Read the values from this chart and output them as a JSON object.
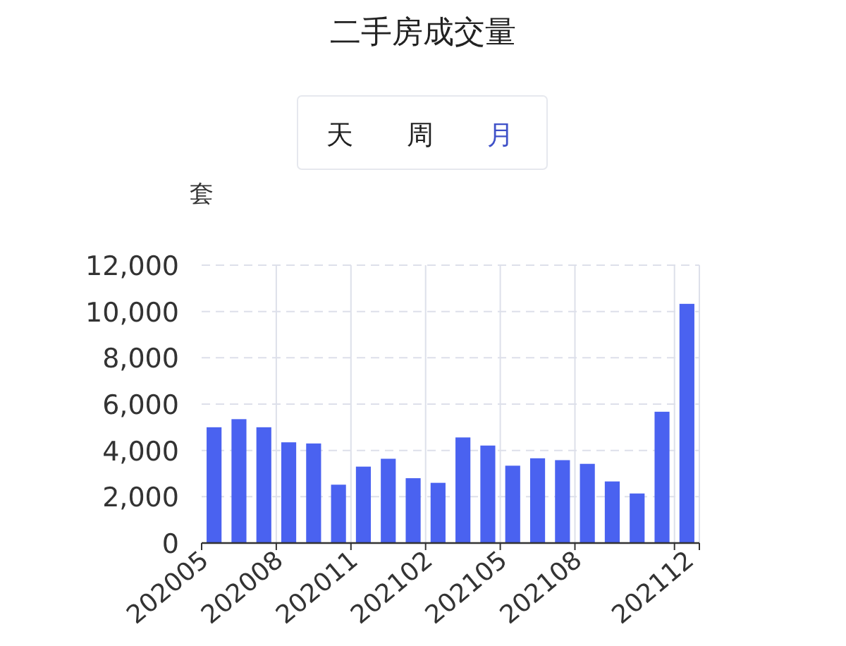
{
  "chart_data": {
    "type": "bar",
    "title": "二手房成交量",
    "ylabel": "套",
    "annotations": [
      "天",
      "周",
      "月"
    ],
    "categories": [
      "202005",
      null,
      null,
      "202008",
      null,
      null,
      "202011",
      null,
      null,
      "202102",
      null,
      null,
      "202105",
      null,
      null,
      "202108",
      null,
      null,
      null,
      "202112"
    ],
    "series": [
      {
        "color": "#4a62f0",
        "values": [
          5000,
          5350,
          5000,
          4350,
          4300,
          2520,
          3300,
          3640,
          2800,
          2600,
          4560,
          4210,
          3340,
          3660,
          3580,
          3420,
          2660,
          2140,
          5670,
          10330
        ]
      }
    ],
    "ylim": [
      0,
      12000
    ],
    "yticks": [
      {
        "value": 0,
        "label": "0"
      },
      {
        "value": 2000,
        "label": "2,000"
      },
      {
        "value": 4000,
        "label": "4,000"
      },
      {
        "value": 6000,
        "label": "6,000"
      },
      {
        "value": 8000,
        "label": "8,000"
      },
      {
        "value": 10000,
        "label": "10,000"
      },
      {
        "value": 12000,
        "label": "12,000"
      }
    ],
    "grid": true
  }
}
